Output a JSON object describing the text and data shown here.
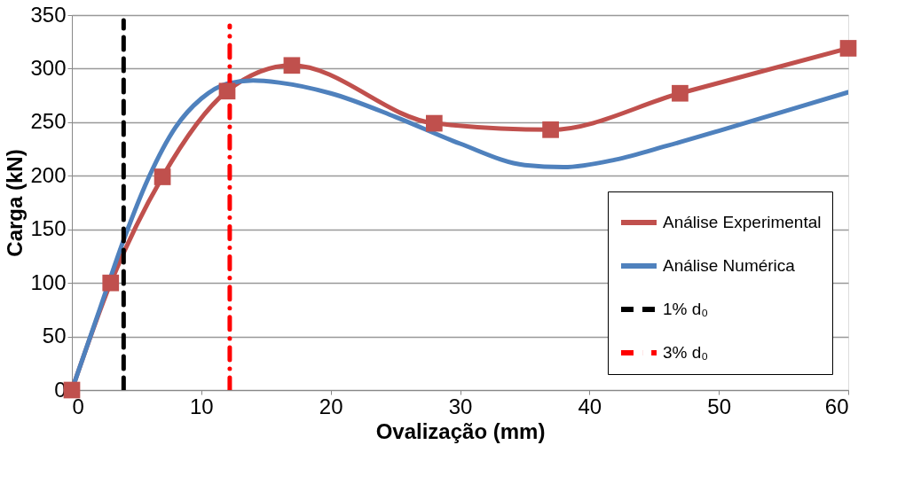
{
  "chart_data": {
    "type": "line",
    "xlabel": "Ovalização (mm)",
    "ylabel": "Carga (kN)",
    "xlim": [
      0,
      60
    ],
    "xticks": [
      0,
      10,
      20,
      30,
      40,
      50,
      60
    ],
    "ylim": [
      0,
      350
    ],
    "yticks": [
      0,
      50,
      100,
      150,
      200,
      250,
      300,
      350
    ],
    "grid": "y",
    "legend": "bottom right",
    "series": [
      {
        "name": "Análise Experimental",
        "color": "#c0504d",
        "marker": "square",
        "x": [
          0,
          3,
          7,
          12,
          17,
          28,
          37,
          47,
          60
        ],
        "values": [
          0,
          100,
          199,
          279,
          303,
          249,
          243,
          277,
          319
        ]
      },
      {
        "name": "Análise Numérica",
        "color": "#4f81bd",
        "marker": "none",
        "x": [
          0,
          2,
          4,
          6,
          8,
          10,
          12,
          14,
          16,
          20,
          25,
          30,
          35,
          38,
          42,
          46,
          50,
          55,
          60
        ],
        "values": [
          0,
          70,
          140,
          200,
          245,
          272,
          286,
          289,
          287,
          277,
          255,
          230,
          210,
          208,
          215,
          228,
          242,
          260,
          278
        ]
      },
      {
        "name": "1% d₀",
        "color": "#000000",
        "marker": "none",
        "line_style": "dashed",
        "x": [
          4,
          4
        ],
        "values": [
          0,
          345
        ]
      },
      {
        "name": "3% d₀",
        "color": "#ff0000",
        "marker": "none",
        "line_style": "dotted",
        "x": [
          12.2,
          12.2
        ],
        "values": [
          0,
          340
        ]
      }
    ]
  }
}
